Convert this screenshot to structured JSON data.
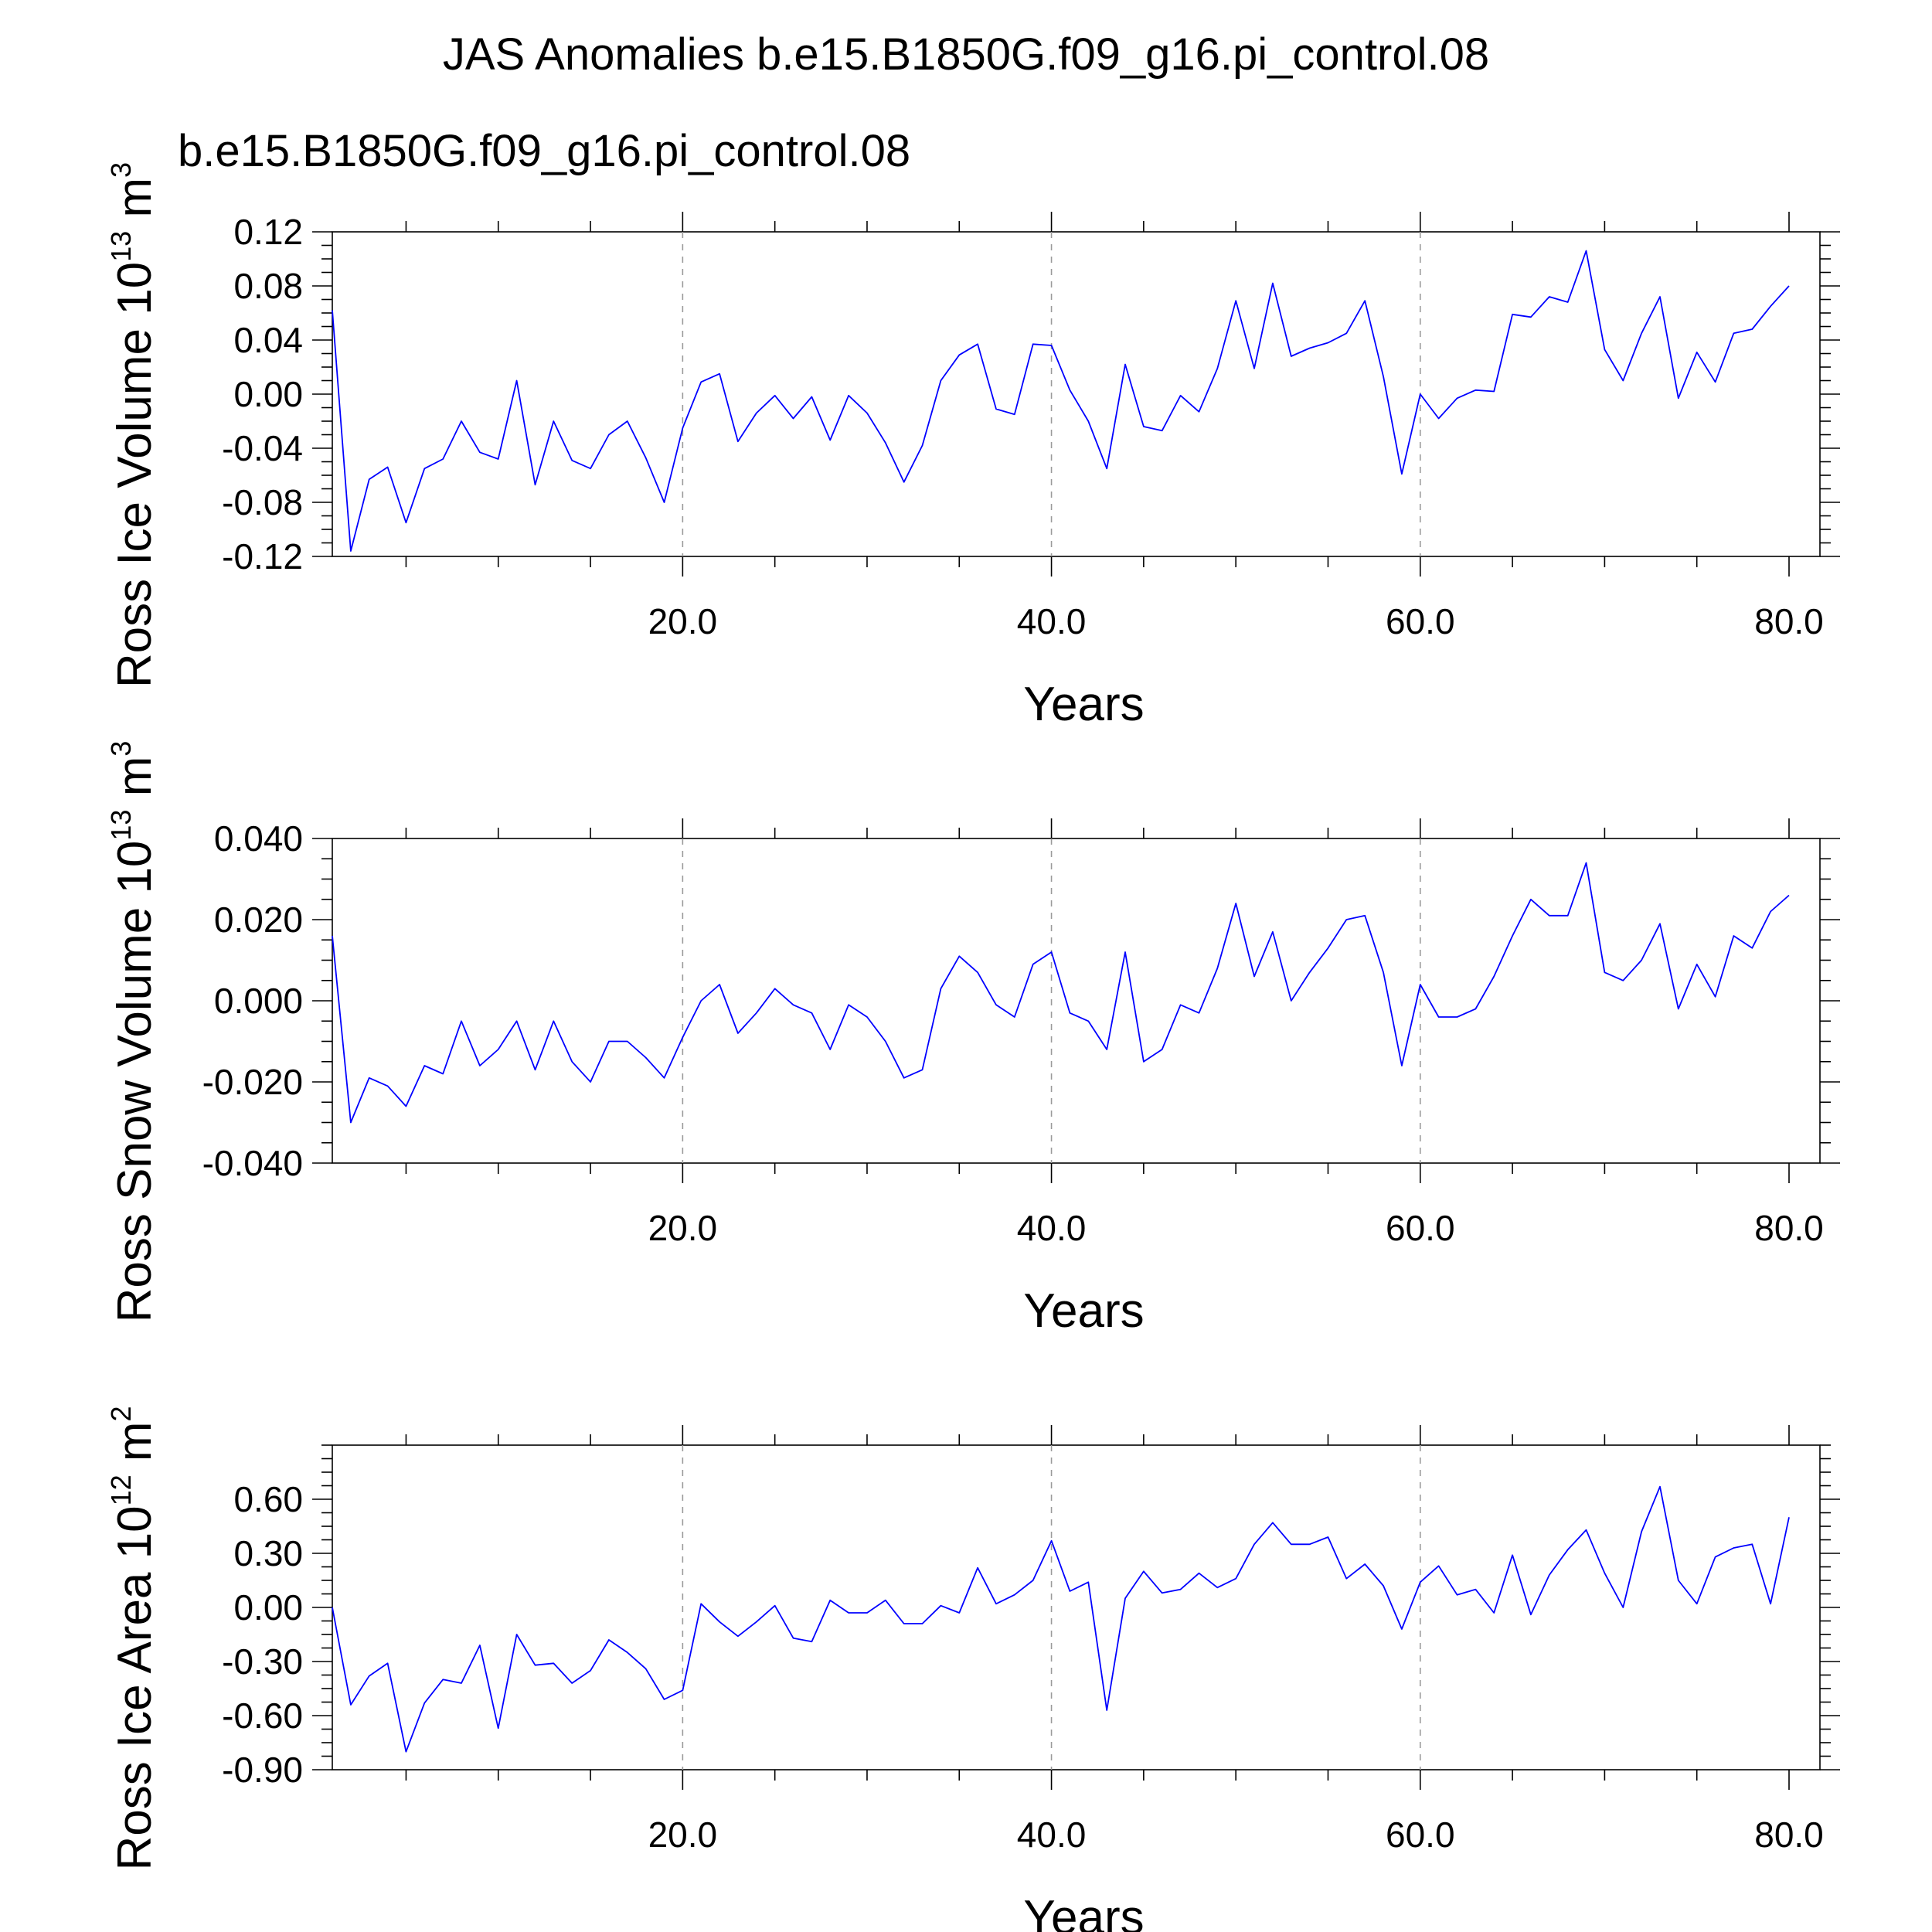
{
  "title": "JAS Anomalies b.e15.B1850G.f09_g16.pi_control.08",
  "subtitle": "b.e15.B1850G.f09_g16.pi_control.08",
  "colors": {
    "series": "#0000ff",
    "axis": "#000000",
    "grid": "#9a9a9a",
    "subtitle": "#0000ff"
  },
  "chart_data": [
    {
      "type": "line",
      "title": "JAS Anomalies b.e15.B1850G.f09_g16.pi_control.08",
      "legend": "b.e15.B1850G.f09_g16.pi_control.08",
      "ylabel": {
        "main": "Ross Ice Volume 10",
        "sup": "13",
        "unit": " m",
        "unit_sup": "3"
      },
      "xlabel": "Years",
      "xlim": [
        1,
        80
      ],
      "ylim": [
        -0.12,
        0.12
      ],
      "yticks": [
        -0.12,
        -0.08,
        -0.04,
        0.0,
        0.04,
        0.08,
        0.12
      ],
      "ytick_labels": [
        "-0.12",
        "-0.08",
        "-0.04",
        "0.00",
        "0.04",
        "0.08",
        "0.12"
      ],
      "xticks": [
        20,
        40,
        60,
        80
      ],
      "xtick_labels": [
        "20.0",
        "40.0",
        "60.0",
        "80.0"
      ],
      "x": [
        1,
        2,
        3,
        4,
        5,
        6,
        7,
        8,
        9,
        10,
        11,
        12,
        13,
        14,
        15,
        16,
        17,
        18,
        19,
        20,
        21,
        22,
        23,
        24,
        25,
        26,
        27,
        28,
        29,
        30,
        31,
        32,
        33,
        34,
        35,
        36,
        37,
        38,
        39,
        40,
        41,
        42,
        43,
        44,
        45,
        46,
        47,
        48,
        49,
        50,
        51,
        52,
        53,
        54,
        55,
        56,
        57,
        58,
        59,
        60,
        61,
        62,
        63,
        64,
        65,
        66,
        67,
        68,
        69,
        70,
        71,
        72,
        73,
        74,
        75,
        76,
        77,
        78,
        79,
        80
      ],
      "y": [
        0.062,
        -0.116,
        -0.063,
        -0.054,
        -0.095,
        -0.055,
        -0.048,
        -0.02,
        -0.043,
        -0.048,
        0.01,
        -0.067,
        -0.02,
        -0.049,
        -0.055,
        -0.03,
        -0.02,
        -0.047,
        -0.08,
        -0.025,
        0.009,
        0.015,
        -0.035,
        -0.014,
        -0.001,
        -0.018,
        -0.002,
        -0.034,
        -0.001,
        -0.014,
        -0.036,
        -0.065,
        -0.038,
        0.01,
        0.029,
        0.037,
        -0.011,
        -0.015,
        0.037,
        0.036,
        0.003,
        -0.02,
        -0.055,
        0.022,
        -0.024,
        -0.027,
        -0.001,
        -0.013,
        0.019,
        0.069,
        0.019,
        0.082,
        0.028,
        0.034,
        0.038,
        0.045,
        0.069,
        0.013,
        -0.059,
        0.0,
        -0.018,
        -0.003,
        0.003,
        0.002,
        0.059,
        0.057,
        0.072,
        0.068,
        0.106,
        0.033,
        0.01,
        0.045,
        0.072,
        -0.003,
        0.031,
        0.009,
        0.045,
        0.048,
        0.065,
        0.08
      ]
    },
    {
      "type": "line",
      "ylabel": {
        "main": "Ross Snow Volume 10",
        "sup": "13",
        "unit": " m",
        "unit_sup": "3"
      },
      "xlabel": "Years",
      "xlim": [
        1,
        80
      ],
      "ylim": [
        -0.04,
        0.04
      ],
      "yticks": [
        -0.04,
        -0.02,
        0.0,
        0.02,
        0.04
      ],
      "ytick_labels": [
        "-0.040",
        "-0.020",
        "0.000",
        "0.020",
        "0.040"
      ],
      "xticks": [
        20,
        40,
        60,
        80
      ],
      "xtick_labels": [
        "20.0",
        "40.0",
        "60.0",
        "80.0"
      ],
      "x": [
        1,
        2,
        3,
        4,
        5,
        6,
        7,
        8,
        9,
        10,
        11,
        12,
        13,
        14,
        15,
        16,
        17,
        18,
        19,
        20,
        21,
        22,
        23,
        24,
        25,
        26,
        27,
        28,
        29,
        30,
        31,
        32,
        33,
        34,
        35,
        36,
        37,
        38,
        39,
        40,
        41,
        42,
        43,
        44,
        45,
        46,
        47,
        48,
        49,
        50,
        51,
        52,
        53,
        54,
        55,
        56,
        57,
        58,
        59,
        60,
        61,
        62,
        63,
        64,
        65,
        66,
        67,
        68,
        69,
        70,
        71,
        72,
        73,
        74,
        75,
        76,
        77,
        78,
        79,
        80
      ],
      "y": [
        0.016,
        -0.03,
        -0.019,
        -0.021,
        -0.026,
        -0.016,
        -0.018,
        -0.005,
        -0.016,
        -0.012,
        -0.005,
        -0.017,
        -0.005,
        -0.015,
        -0.02,
        -0.01,
        -0.01,
        -0.014,
        -0.019,
        -0.009,
        0.0,
        0.004,
        -0.008,
        -0.003,
        0.003,
        -0.001,
        -0.003,
        -0.012,
        -0.001,
        -0.004,
        -0.01,
        -0.019,
        -0.017,
        0.003,
        0.011,
        0.007,
        -0.001,
        -0.004,
        0.009,
        0.012,
        -0.003,
        -0.005,
        -0.012,
        0.012,
        -0.015,
        -0.012,
        -0.001,
        -0.003,
        0.008,
        0.024,
        0.006,
        0.017,
        0.0,
        0.007,
        0.013,
        0.02,
        0.021,
        0.007,
        -0.016,
        0.004,
        -0.004,
        -0.004,
        -0.002,
        0.006,
        0.016,
        0.025,
        0.021,
        0.021,
        0.034,
        0.007,
        0.005,
        0.01,
        0.019,
        -0.002,
        0.009,
        0.001,
        0.016,
        0.013,
        0.022,
        0.026
      ]
    },
    {
      "type": "line",
      "ylabel": {
        "main": "Ross Ice Area 10",
        "sup": "12",
        "unit": " m",
        "unit_sup": "2"
      },
      "xlabel": "Years",
      "xlim": [
        1,
        80
      ],
      "ylim": [
        -0.9,
        0.9
      ],
      "yticks": [
        -0.9,
        -0.6,
        -0.3,
        0.0,
        0.3,
        0.6
      ],
      "ytick_labels": [
        "-0.90",
        "-0.60",
        "-0.30",
        "0.00",
        "0.30",
        "0.60"
      ],
      "xticks": [
        20,
        40,
        60,
        80
      ],
      "xtick_labels": [
        "20.0",
        "40.0",
        "60.0",
        "80.0"
      ],
      "x": [
        1,
        2,
        3,
        4,
        5,
        6,
        7,
        8,
        9,
        10,
        11,
        12,
        13,
        14,
        15,
        16,
        17,
        18,
        19,
        20,
        21,
        22,
        23,
        24,
        25,
        26,
        27,
        28,
        29,
        30,
        31,
        32,
        33,
        34,
        35,
        36,
        37,
        38,
        39,
        40,
        41,
        42,
        43,
        44,
        45,
        46,
        47,
        48,
        49,
        50,
        51,
        52,
        53,
        54,
        55,
        56,
        57,
        58,
        59,
        60,
        61,
        62,
        63,
        64,
        65,
        66,
        67,
        68,
        69,
        70,
        71,
        72,
        73,
        74,
        75,
        76,
        77,
        78,
        79,
        80
      ],
      "y": [
        0.0,
        -0.54,
        -0.38,
        -0.31,
        -0.8,
        -0.53,
        -0.4,
        -0.42,
        -0.21,
        -0.67,
        -0.15,
        -0.32,
        -0.31,
        -0.42,
        -0.35,
        -0.18,
        -0.25,
        -0.34,
        -0.51,
        -0.46,
        0.02,
        -0.08,
        -0.16,
        -0.08,
        0.01,
        -0.17,
        -0.19,
        0.04,
        -0.03,
        -0.03,
        0.04,
        -0.09,
        -0.09,
        0.01,
        -0.03,
        0.22,
        0.02,
        0.07,
        0.15,
        0.37,
        0.09,
        0.14,
        -0.57,
        0.05,
        0.2,
        0.08,
        0.1,
        0.19,
        0.11,
        0.16,
        0.35,
        0.47,
        0.35,
        0.35,
        0.39,
        0.16,
        0.24,
        0.12,
        -0.12,
        0.14,
        0.23,
        0.07,
        0.1,
        -0.03,
        0.29,
        -0.04,
        0.18,
        0.32,
        0.43,
        0.19,
        0.0,
        0.42,
        0.67,
        0.15,
        0.02,
        0.28,
        0.33,
        0.35,
        0.02,
        0.5
      ]
    }
  ]
}
